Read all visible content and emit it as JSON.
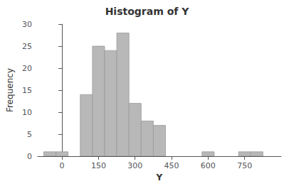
{
  "chart_data": {
    "type": "histogram",
    "title": "Histogram of Y",
    "xlabel": "Y",
    "ylabel": "Frequency",
    "bins": [
      -75,
      -25,
      25,
      75,
      125,
      175,
      225,
      275,
      325,
      375,
      425,
      575,
      625,
      675,
      725,
      775,
      825,
      875
    ],
    "values": [
      1,
      1,
      0,
      14,
      25,
      24,
      28,
      12,
      8,
      7,
      0,
      1,
      0,
      0,
      1,
      1,
      0
    ],
    "color": "#b8b8b8",
    "xlim": [
      -100,
      900
    ],
    "xticks": [
      0,
      150,
      300,
      450,
      600,
      750
    ],
    "ylim": [
      0,
      30
    ],
    "yticks": [
      0,
      5,
      10,
      15,
      20,
      25,
      30
    ],
    "grid": false
  }
}
